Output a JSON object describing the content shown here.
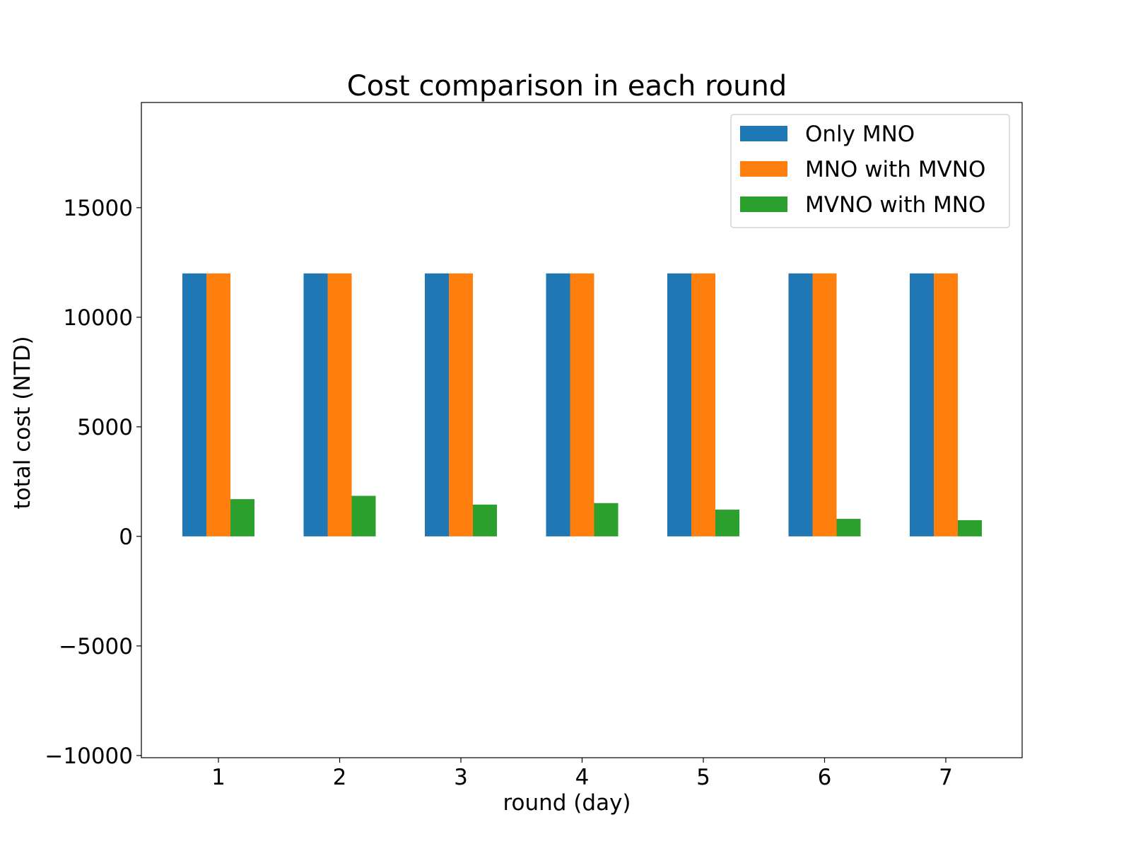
{
  "chart_data": {
    "type": "bar",
    "title": "Cost comparison in each round",
    "xlabel": "round (day)",
    "ylabel": "total cost (NTD)",
    "categories": [
      "1",
      "2",
      "3",
      "4",
      "5",
      "6",
      "7"
    ],
    "series": [
      {
        "name": "Only MNO",
        "color": "#1f77b4",
        "values": [
          12000,
          12000,
          12000,
          12000,
          12000,
          12000,
          12000
        ]
      },
      {
        "name": "MNO with MVNO",
        "color": "#ff7f0e",
        "values": [
          12000,
          12000,
          12000,
          12000,
          12000,
          12000,
          12000
        ]
      },
      {
        "name": "MVNO with MNO",
        "color": "#2ca02c",
        "values": [
          1700,
          1850,
          1450,
          1520,
          1220,
          800,
          740
        ]
      }
    ],
    "ylim": [
      -10100,
      19800
    ],
    "yticks": [
      -10000,
      -5000,
      0,
      5000,
      10000,
      15000
    ],
    "ytick_labels": [
      "−10000",
      "−5000",
      "0",
      "5000",
      "10000",
      "15000"
    ],
    "legend_position": "top-right",
    "grid": false
  }
}
